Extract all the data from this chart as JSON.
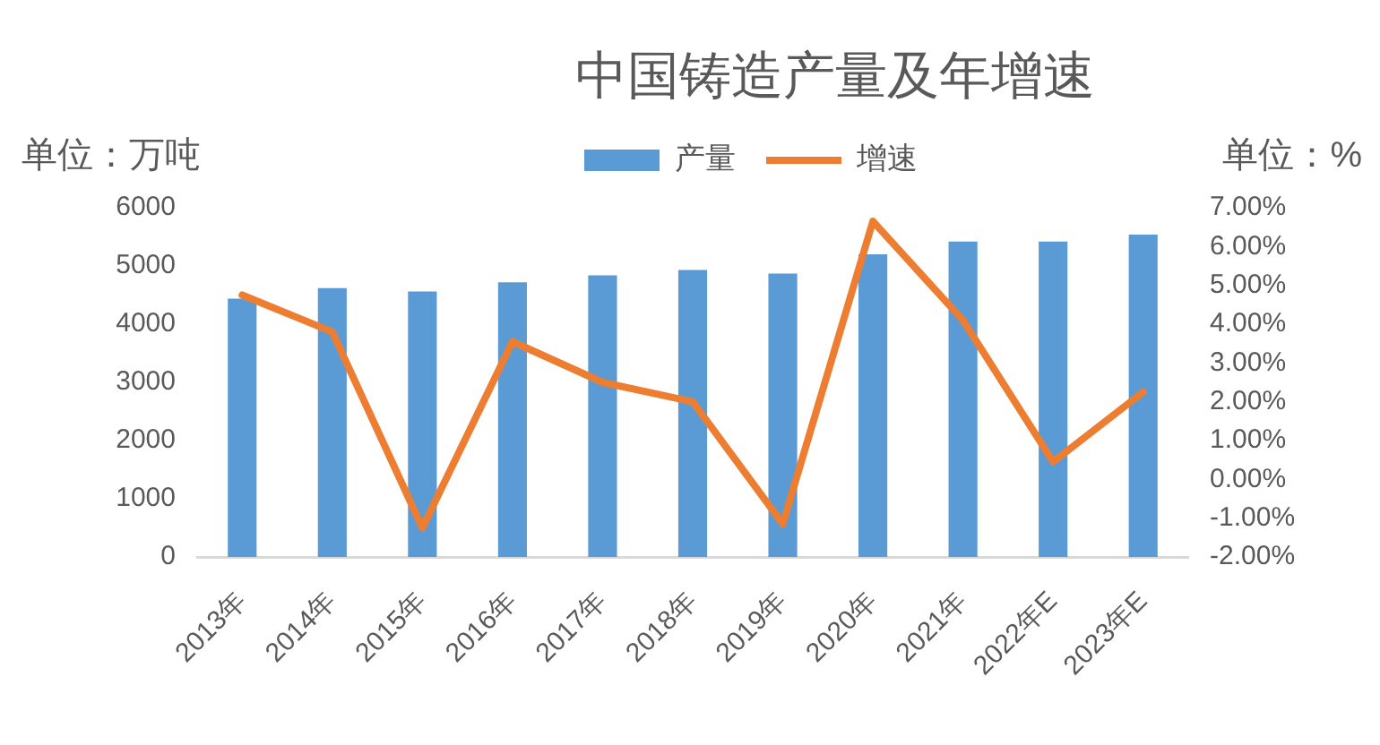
{
  "chart_data": {
    "type": "bar",
    "title": "中国铸造产量及年增速",
    "ylabel": "单位：万吨",
    "y2label": "单位：%",
    "categories": [
      "2013年",
      "2014年",
      "2015年",
      "2016年",
      "2017年",
      "2018年",
      "2019年",
      "2020年",
      "2021年",
      "2022年E",
      "2023年E"
    ],
    "series": [
      {
        "name": "产量",
        "color": "#5b9bd5",
        "values": [
          4440,
          4620,
          4560,
          4720,
          4840,
          4930,
          4870,
          5200,
          5420,
          5420,
          5540
        ]
      },
      {
        "name": "增速",
        "type": "line",
        "axis": "y2",
        "color": "#ed7d31",
        "values": [
          4.75,
          3.8,
          -1.25,
          3.55,
          2.5,
          2.0,
          -1.15,
          6.65,
          4.1,
          0.45,
          2.25
        ]
      }
    ],
    "ylim": [
      0,
      6000
    ],
    "yticks": [
      0,
      1000,
      2000,
      3000,
      4000,
      5000,
      6000
    ],
    "y2lim": [
      -2,
      7
    ],
    "y2ticks": [
      {
        "value": -2,
        "label": "-2.00%"
      },
      {
        "value": -1,
        "label": "-1.00%"
      },
      {
        "value": 0,
        "label": "0.00%"
      },
      {
        "value": 1,
        "label": "1.00%"
      },
      {
        "value": 2,
        "label": "2.00%"
      },
      {
        "value": 3,
        "label": "3.00%"
      },
      {
        "value": 4,
        "label": "4.00%"
      },
      {
        "value": 5,
        "label": "5.00%"
      },
      {
        "value": 6,
        "label": "6.00%"
      },
      {
        "value": 7,
        "label": "7.00%"
      }
    ],
    "grid": false,
    "legend": "top"
  }
}
